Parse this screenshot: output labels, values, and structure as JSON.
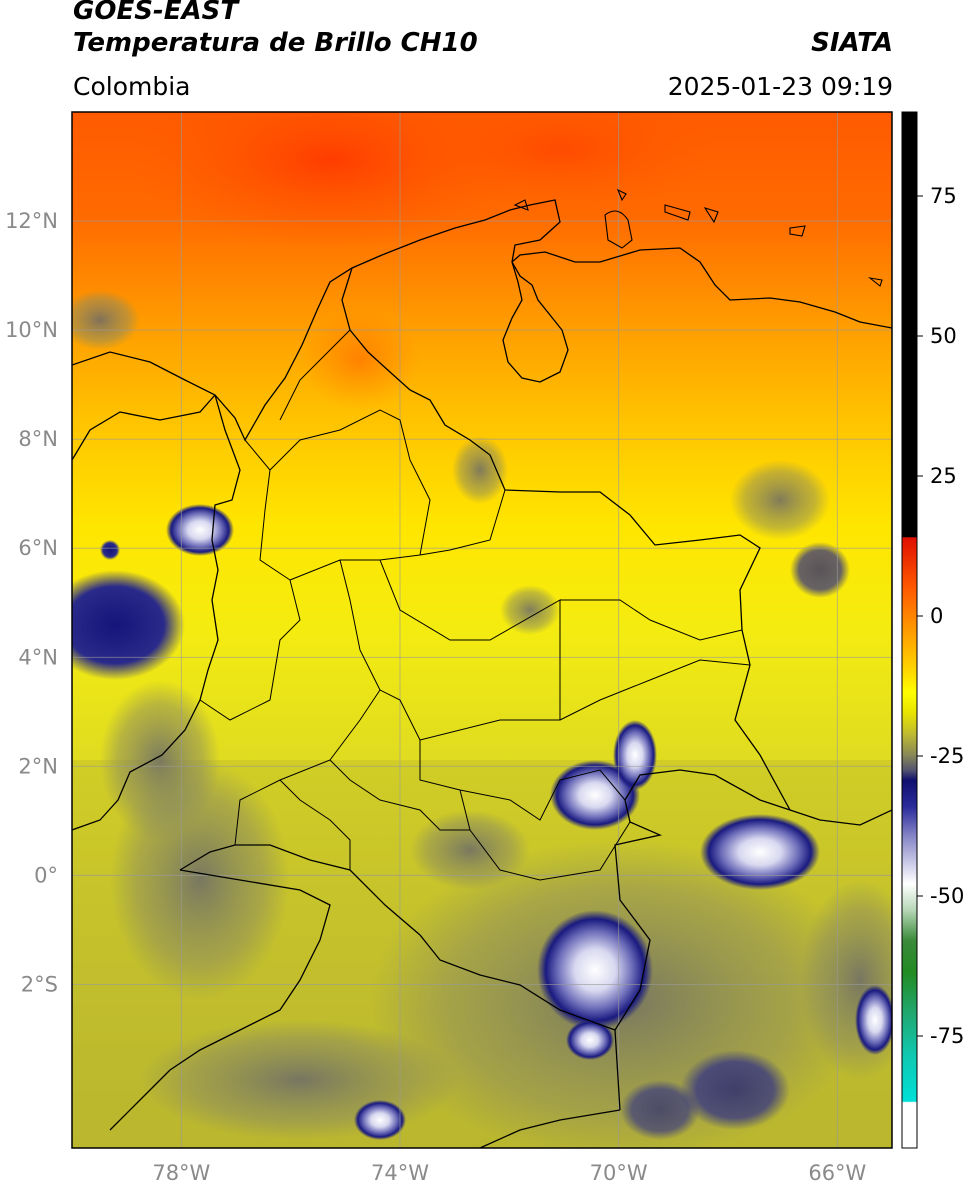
{
  "header": {
    "satellite": "GOES-EAST",
    "product": "Temperatura de Brillo CH10",
    "region": "Colombia",
    "organization": "SIATA",
    "datetime": "2025-01-23 09:19"
  },
  "map": {
    "lon_range": [
      -80,
      -65
    ],
    "lat_range": [
      -5,
      14
    ],
    "lon_ticks": [
      {
        "value": -78,
        "label": "78°W"
      },
      {
        "value": -74,
        "label": "74°W"
      },
      {
        "value": -70,
        "label": "70°W"
      },
      {
        "value": -66,
        "label": "66°W"
      }
    ],
    "lat_ticks": [
      {
        "value": 12,
        "label": "12°N"
      },
      {
        "value": 10,
        "label": "10°N"
      },
      {
        "value": 8,
        "label": "8°N"
      },
      {
        "value": 6,
        "label": "6°N"
      },
      {
        "value": 4,
        "label": "4°N"
      },
      {
        "value": 2,
        "label": "2°N"
      },
      {
        "value": 0,
        "label": "0°"
      },
      {
        "value": -2,
        "label": "2°S"
      }
    ],
    "gridlines": true
  },
  "colorbar": {
    "range": [
      -95,
      90
    ],
    "ticks": [
      {
        "value": 75,
        "label": "75"
      },
      {
        "value": 50,
        "label": "50"
      },
      {
        "value": 25,
        "label": "25"
      },
      {
        "value": 0,
        "label": "0"
      },
      {
        "value": -25,
        "label": "-25"
      },
      {
        "value": -50,
        "label": "-50"
      },
      {
        "value": -75,
        "label": "-75"
      }
    ],
    "colors": {
      "hot": "#000000",
      "red": "#e01000",
      "orange": "#ff8c00",
      "yellow": "#ffff00",
      "olive": "#b0b038",
      "navy": "#10106e",
      "white": "#ffffff",
      "green": "#228b22",
      "cyan": "#00e0d8"
    }
  }
}
